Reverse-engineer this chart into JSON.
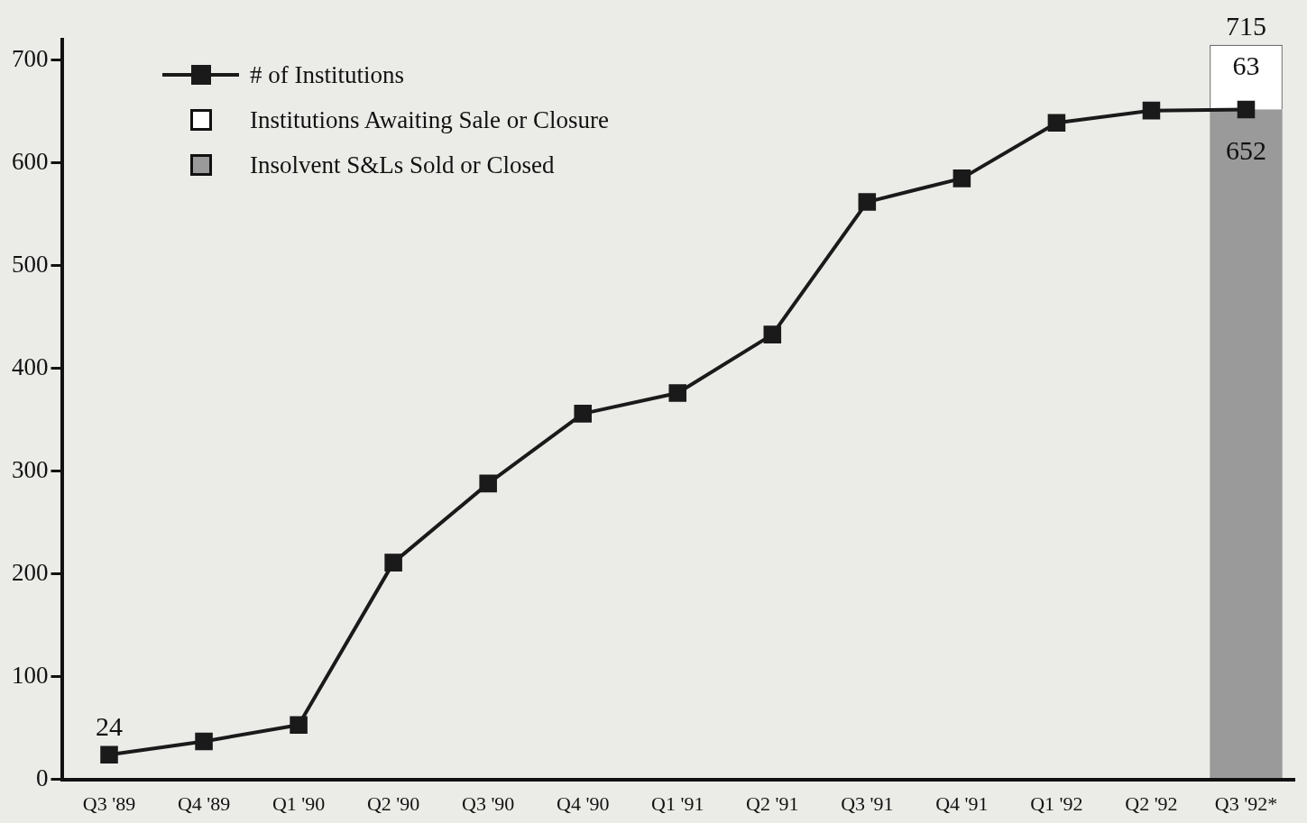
{
  "chart_data": {
    "type": "bar",
    "categories": [
      "Q3 '89",
      "Q4 '89",
      "Q1 '90",
      "Q2 '90",
      "Q3 '90",
      "Q4 '90",
      "Q1 '91",
      "Q2 '91",
      "Q3 '91",
      "Q4 '91",
      "Q1 '92",
      "Q2 '92",
      "Q3 '92*"
    ],
    "series": [
      {
        "name": "Insolvent S&Ls Sold or Closed",
        "color": "#9a9a9a",
        "values": [
          null,
          null,
          null,
          null,
          null,
          null,
          null,
          null,
          null,
          null,
          null,
          null,
          652
        ],
        "value_labels": [
          null,
          null,
          null,
          null,
          null,
          null,
          null,
          null,
          null,
          null,
          null,
          null,
          "652"
        ]
      },
      {
        "name": "Institutions Awaiting Sale or Closure",
        "color": "#ffffff",
        "values": [
          null,
          null,
          null,
          null,
          null,
          null,
          null,
          null,
          null,
          null,
          null,
          null,
          63
        ],
        "value_labels": [
          null,
          null,
          null,
          null,
          null,
          null,
          null,
          null,
          null,
          null,
          null,
          null,
          "63"
        ]
      },
      {
        "name": "# of Institutions",
        "type": "line",
        "color": "#1a1a1a",
        "values": [
          24,
          37,
          53,
          211,
          288,
          356,
          376,
          433,
          562,
          585,
          639,
          651,
          652
        ],
        "value_labels": [
          "24",
          null,
          null,
          null,
          null,
          null,
          null,
          null,
          null,
          null,
          null,
          null,
          null
        ]
      }
    ],
    "stacked": true,
    "totals": [
      null,
      null,
      null,
      null,
      null,
      null,
      null,
      null,
      null,
      null,
      null,
      null,
      "715"
    ],
    "ylim": [
      0,
      720
    ],
    "yticks": [
      0,
      100,
      200,
      300,
      400,
      500,
      600,
      700
    ],
    "grid": false,
    "legend": "top left",
    "marker": "square",
    "line_style": "solid"
  }
}
